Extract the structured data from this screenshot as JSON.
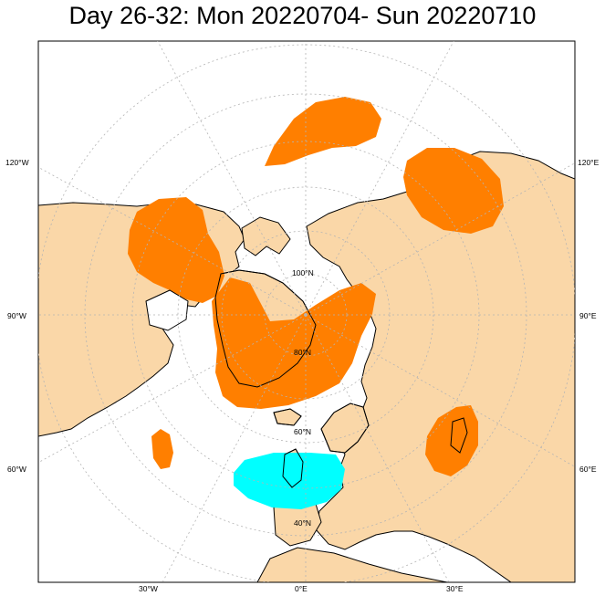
{
  "title": "Day 26-32: Mon 20220704- Sun 20220710",
  "colors": {
    "land": "#fad7a8",
    "ocean": "#ffffff",
    "positive_anomaly": "#ff7f00",
    "negative_anomaly": "#00ffff",
    "coast": "#000000",
    "grid": "#b4b4b4"
  },
  "longitude_labels": {
    "left_upper": "120°W",
    "left_middle": "90°W",
    "left_lower": "60°W",
    "right_upper": "120°E",
    "right_middle": "90°E",
    "right_lower": "60°E",
    "bottom_left": "30°W",
    "bottom_center": "0°E",
    "bottom_right": "30°E"
  },
  "latitude_labels": {
    "pole": "100°N",
    "lat80": "80°N",
    "lat60": "60°N",
    "lat40": "40°N"
  }
}
